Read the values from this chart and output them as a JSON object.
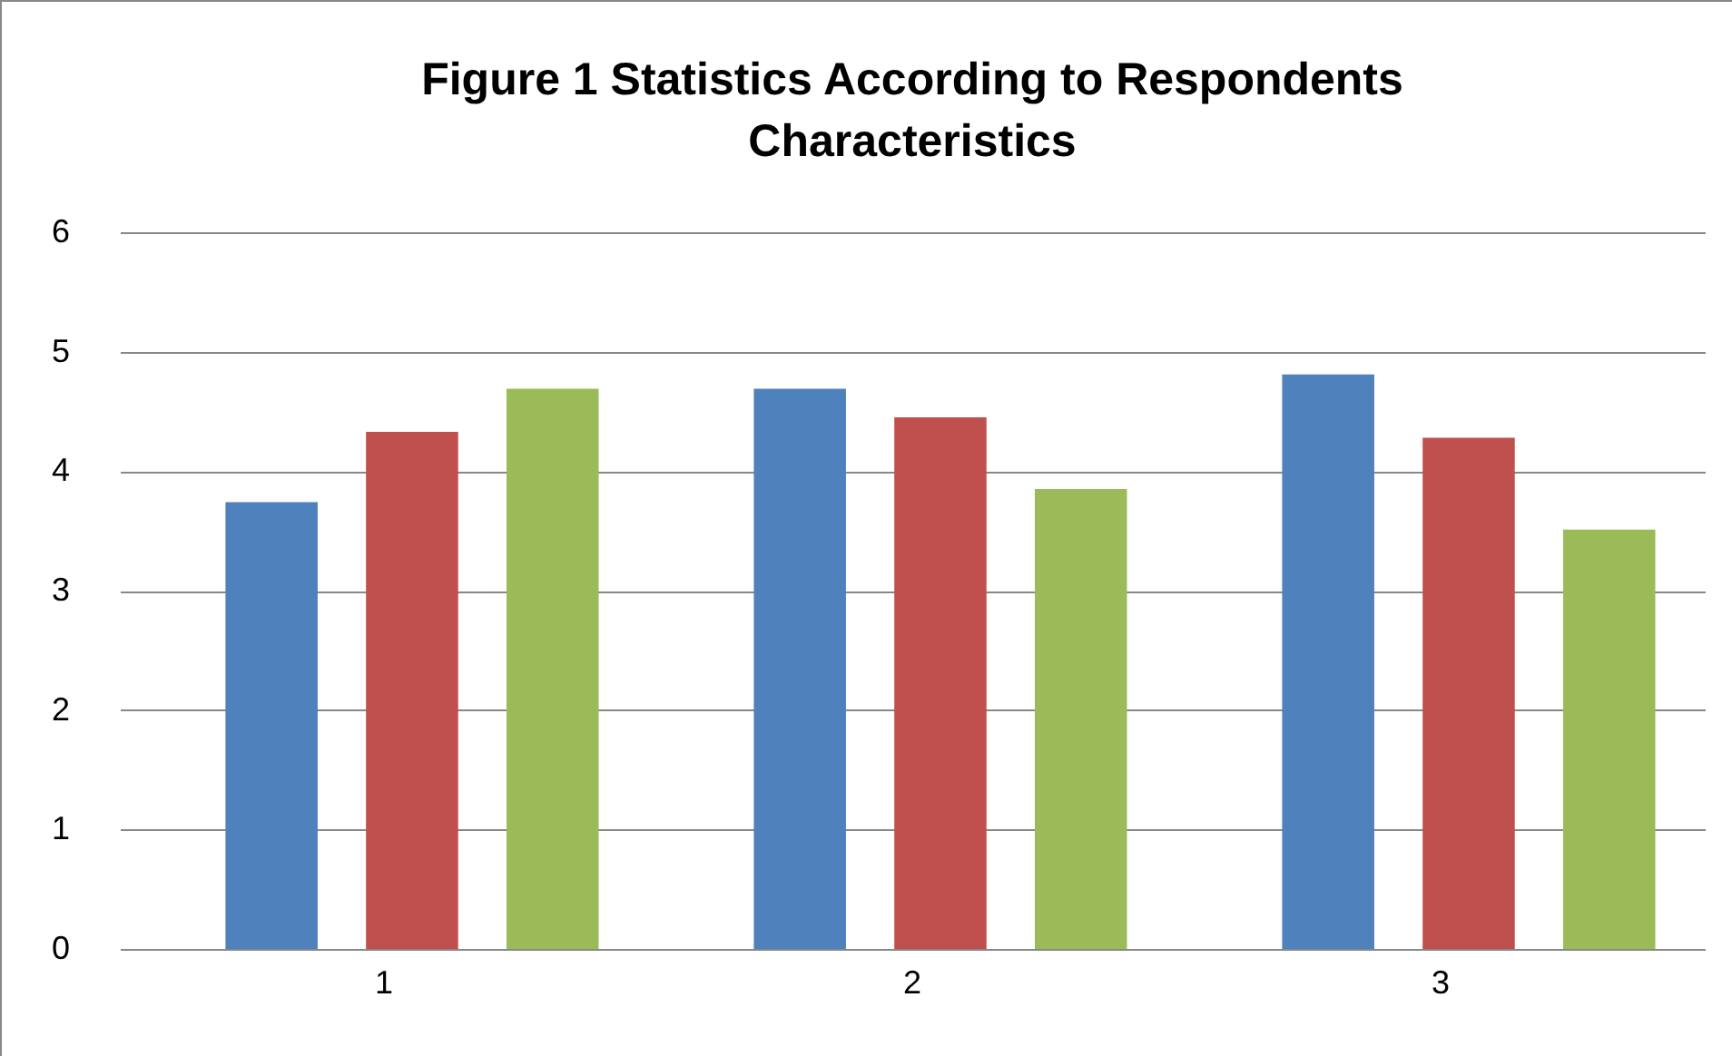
{
  "chart_data": {
    "type": "bar",
    "title": [
      "Figure 1 Statistics According to Respondents",
      "Characteristics"
    ],
    "categories": [
      "1",
      "2",
      "3"
    ],
    "series": [
      {
        "color": "#4f81bd",
        "values": [
          3.74,
          4.69,
          4.81
        ]
      },
      {
        "color": "#c0504d",
        "values": [
          4.33,
          4.45,
          4.28
        ]
      },
      {
        "color": "#9bbb59",
        "values": [
          4.69,
          3.85,
          3.51
        ]
      }
    ],
    "ylim": [
      0,
      6
    ],
    "yticks": [
      0,
      1,
      2,
      3,
      4,
      5,
      6
    ],
    "grid": "y",
    "legend": false
  }
}
